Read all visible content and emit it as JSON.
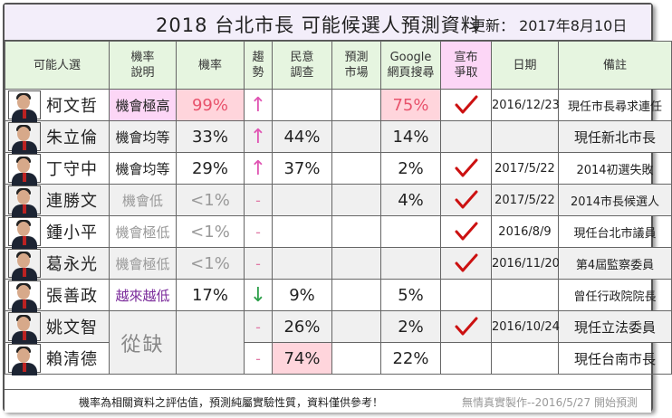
{
  "header": {
    "title": "2018  台北市長  可能候選人預測資料",
    "updated": "更新：  2017年8月10日"
  },
  "columns": [
    "可能人選",
    "機率說明",
    "機率",
    "趨勢",
    "民意調查",
    "預測市場",
    "Google網頁搜尋",
    "宣布爭取",
    "日期",
    "備註"
  ],
  "column_lines": {
    "desc": [
      "機率",
      "說明"
    ],
    "trend": [
      "趨",
      "勢"
    ],
    "poll": [
      "民意",
      "調查"
    ],
    "market": [
      "預測",
      "市場"
    ],
    "google": [
      "Google",
      "網頁搜尋"
    ],
    "announce": [
      "宣布",
      "爭取"
    ]
  },
  "rows": [
    {
      "name": "柯文哲",
      "desc": "機會極高",
      "rate": "99%",
      "trend": "↑",
      "poll": "",
      "google": "75%",
      "check": true,
      "date": "2016/12/23",
      "note": "現任市長尋求連任"
    },
    {
      "name": "朱立倫",
      "desc": "機會均等",
      "rate": "33%",
      "trend": "↑",
      "poll": "44%",
      "google": "14%",
      "check": false,
      "date": "",
      "note": "現任新北市長"
    },
    {
      "name": "丁守中",
      "desc": "機會均等",
      "rate": "29%",
      "trend": "↑",
      "poll": "37%",
      "google": "2%",
      "check": true,
      "date": "2017/5/22",
      "note": "2014初選失敗"
    },
    {
      "name": "連勝文",
      "desc": "機會低",
      "rate": "<1%",
      "trend": "-",
      "poll": "",
      "google": "4%",
      "check": true,
      "date": "2017/5/22",
      "note": "2014市長候選人"
    },
    {
      "name": "鍾小平",
      "desc": "機會極低",
      "rate": "<1%",
      "trend": "-",
      "poll": "",
      "google": "",
      "check": true,
      "date": "2016/8/9",
      "note": "現任台北市議員"
    },
    {
      "name": "葛永光",
      "desc": "機會極低",
      "rate": "<1%",
      "trend": "-",
      "poll": "",
      "google": "",
      "check": true,
      "date": "2016/11/20",
      "note": "第4屆監察委員"
    },
    {
      "name": "張善政",
      "desc": "越來越低",
      "rate": "17%",
      "trend": "↓",
      "poll": "9%",
      "google": "5%",
      "check": false,
      "date": "",
      "note": "曾任行政院院長"
    },
    {
      "name": "姚文智",
      "desc": "從缺",
      "rate": "",
      "trend": "-",
      "poll": "26%",
      "google": "2%",
      "check": true,
      "date": "2016/10/24",
      "note": "現任立法委員"
    },
    {
      "name": "賴清德",
      "desc": "",
      "rate": "",
      "trend": "-",
      "poll": "74%",
      "google": "22%",
      "check": false,
      "date": "",
      "note": "現任台南市長"
    }
  ],
  "footer": {
    "left": "機率為相關資料之評估值，預測純屬實驗性質，資料僅供參考！",
    "right": "無情真實製作--2016/5/27 開始預測"
  },
  "colors": {
    "title_bg": "#f3eefa",
    "header_bg": "#e6f5e0",
    "highlight": "#ffd5dc",
    "check": "#cc1111"
  }
}
